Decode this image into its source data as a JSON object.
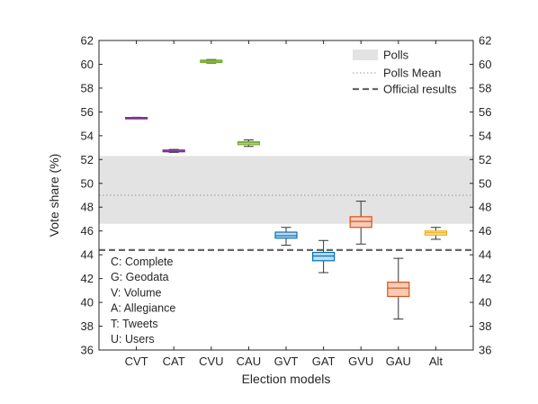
{
  "chart_data": {
    "type": "box",
    "xlabel": "Election models",
    "ylabel": "Vote share (%)",
    "ylim": [
      36,
      62
    ],
    "yticks": [
      36,
      38,
      40,
      42,
      44,
      46,
      48,
      50,
      52,
      54,
      56,
      58,
      60,
      62
    ],
    "right_axis_mirrored": true,
    "grid": false,
    "legend_position": "top-right",
    "legend": [
      {
        "label": "Polls",
        "style": "band",
        "color": "#e3e3e3"
      },
      {
        "label": "Polls Mean",
        "style": "dotted",
        "color": "#999999"
      },
      {
        "label": "Official results",
        "style": "dashed",
        "color": "#666666"
      }
    ],
    "polls": {
      "low": 46.6,
      "high": 52.3,
      "mean": 49.0
    },
    "official_result": 44.4,
    "categories": [
      "CVT",
      "CAT",
      "CVU",
      "CAU",
      "GVT",
      "GAT",
      "GVU",
      "GAU",
      "Alt"
    ],
    "boxes": [
      {
        "name": "CVT",
        "whisker_low": 55.45,
        "q1": 55.47,
        "median": 55.5,
        "q3": 55.53,
        "whisker_high": 55.55,
        "color": "#7e2f8e",
        "fill": "#c7a9d4"
      },
      {
        "name": "CAT",
        "whisker_low": 52.6,
        "q1": 52.65,
        "median": 52.7,
        "q3": 52.8,
        "whisker_high": 52.85,
        "color": "#7e2f8e",
        "fill": "#c7a9d4"
      },
      {
        "name": "CVU",
        "whisker_low": 60.1,
        "q1": 60.15,
        "median": 60.25,
        "q3": 60.35,
        "whisker_high": 60.4,
        "color": "#77ac30",
        "fill": "#cfe5b0"
      },
      {
        "name": "CAU",
        "whisker_low": 53.1,
        "q1": 53.25,
        "median": 53.4,
        "q3": 53.5,
        "whisker_high": 53.65,
        "color": "#77ac30",
        "fill": "#cfe5b0"
      },
      {
        "name": "GVT",
        "whisker_low": 44.8,
        "q1": 45.4,
        "median": 45.6,
        "q3": 45.9,
        "whisker_high": 46.3,
        "color": "#0072bd",
        "fill": "#bfdcf2"
      },
      {
        "name": "GAT",
        "whisker_low": 42.5,
        "q1": 43.5,
        "median": 43.9,
        "q3": 44.2,
        "whisker_high": 45.2,
        "color": "#0072bd",
        "fill": "#bfdcf2"
      },
      {
        "name": "GVU",
        "whisker_low": 44.9,
        "q1": 46.3,
        "median": 46.8,
        "q3": 47.2,
        "whisker_high": 48.5,
        "color": "#d95319",
        "fill": "#f6cbb7"
      },
      {
        "name": "GAU",
        "whisker_low": 38.6,
        "q1": 40.5,
        "median": 41.2,
        "q3": 41.7,
        "whisker_high": 43.7,
        "color": "#d95319",
        "fill": "#f6cbb7"
      },
      {
        "name": "Alt",
        "whisker_low": 45.3,
        "q1": 45.65,
        "median": 45.85,
        "q3": 46.0,
        "whisker_high": 46.3,
        "color": "#edb120",
        "fill": "#f8e39f"
      }
    ],
    "annotations": [
      "C: Complete",
      "G: Geodata",
      "V: Volume",
      "A: Allegiance",
      "T: Tweets",
      "U: Users"
    ]
  }
}
